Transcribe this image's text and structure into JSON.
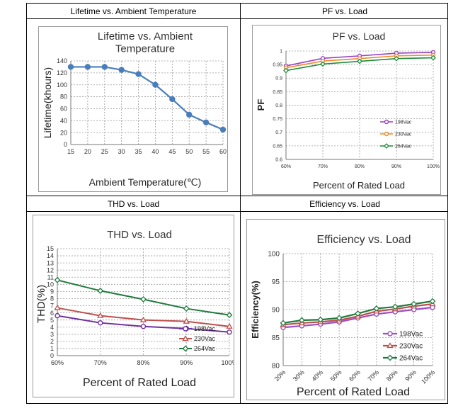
{
  "page": {
    "headers": {
      "lifetime": "Lifetime vs. Ambient Temperature",
      "pf": "PF vs. Load",
      "thd": "THD vs. Load",
      "efficiency": "Efficiency vs. Load"
    }
  },
  "chart_data": [
    {
      "id": "lifetime",
      "type": "line",
      "title": "Lifetime vs. Ambient Temperature",
      "xlabel": "Ambient Temperature(℃)",
      "ylabel": "Lifetime(khours)",
      "x": [
        15,
        20,
        25,
        30,
        35,
        40,
        45,
        50,
        55,
        60
      ],
      "xticks": [
        "15",
        "20",
        "25",
        "30",
        "35",
        "40",
        "45",
        "50",
        "55",
        "60"
      ],
      "ylim": [
        0,
        140
      ],
      "yticks": [
        "0",
        "20",
        "40",
        "60",
        "80",
        "100",
        "120",
        "140"
      ],
      "grid": true,
      "series": [
        {
          "color": "#4a7ebb",
          "marker": "dot",
          "values": [
            130,
            130,
            130,
            125,
            118,
            100,
            76,
            50,
            37,
            25
          ]
        }
      ]
    },
    {
      "id": "pf",
      "type": "line",
      "title": "PF vs. Load",
      "xlabel": "Percent of Rated Load",
      "ylabel": "PF",
      "categories": [
        "60%",
        "70%",
        "80%",
        "90%",
        "100%"
      ],
      "ylim": [
        0.6,
        1.0
      ],
      "yticks": [
        "0.6",
        "0.65",
        "0.7",
        "0.75",
        "0.8",
        "0.85",
        "0.9",
        "0.95",
        "1"
      ],
      "grid": true,
      "legend": "inside-right",
      "series": [
        {
          "name": "198Vac",
          "color": "#9b3fbf",
          "marker": "circle",
          "values": [
            0.945,
            0.973,
            0.982,
            0.992,
            0.995
          ]
        },
        {
          "name": "230Vac",
          "color": "#f08a24",
          "marker": "circle",
          "values": [
            0.938,
            0.963,
            0.972,
            0.982,
            0.985
          ]
        },
        {
          "name": "264Vac",
          "color": "#1e8a3c",
          "marker": "diamond",
          "values": [
            0.928,
            0.952,
            0.962,
            0.972,
            0.975
          ]
        }
      ]
    },
    {
      "id": "thd",
      "type": "line",
      "title": "THD vs. Load",
      "xlabel": "Percent of Rated Load",
      "ylabel": "THD(%)",
      "categories": [
        "60%",
        "70%",
        "80%",
        "90%",
        "100%"
      ],
      "ylim": [
        0,
        15
      ],
      "yticks": [
        "0",
        "1",
        "2",
        "3",
        "4",
        "5",
        "6",
        "7",
        "8",
        "9",
        "10",
        "11",
        "12",
        "13",
        "14",
        "15"
      ],
      "grid": true,
      "legend": "inside-bottom-right",
      "series": [
        {
          "name": "198Vac",
          "color": "#7030a0",
          "marker": "circle",
          "values": [
            5.6,
            4.6,
            4.1,
            3.8,
            3.3
          ]
        },
        {
          "name": "230Vac",
          "color": "#c0504d",
          "marker": "triangle",
          "values": [
            6.7,
            5.6,
            5.0,
            4.8,
            4.1
          ]
        },
        {
          "name": "264Vac",
          "color": "#1e7a3c",
          "marker": "diamond",
          "values": [
            10.6,
            9.1,
            7.9,
            6.6,
            5.7
          ]
        }
      ]
    },
    {
      "id": "efficiency",
      "type": "line",
      "title": "Efficiency vs. Load",
      "xlabel": "Percent of Rated Load",
      "ylabel": "Efficiency(%)",
      "categories": [
        "20%",
        "30%",
        "40%",
        "50%",
        "60%",
        "70%",
        "80%",
        "90%",
        "100%"
      ],
      "ylim": [
        80,
        100
      ],
      "yticks": [
        "80",
        "85",
        "90",
        "95",
        "100"
      ],
      "grid": true,
      "legend": "inside-bottom-right",
      "series": [
        {
          "name": "198Vac",
          "color": "#9b4fc7",
          "marker": "circle",
          "values": [
            86.8,
            87.1,
            87.4,
            87.8,
            88.5,
            89.2,
            89.6,
            90.0,
            90.4
          ]
        },
        {
          "name": "230Vac",
          "color": "#c0504d",
          "marker": "triangle",
          "values": [
            87.3,
            87.6,
            87.8,
            88.1,
            88.8,
            89.7,
            90.1,
            90.6,
            91.0
          ]
        },
        {
          "name": "264Vac",
          "color": "#1e7a3c",
          "marker": "diamond",
          "values": [
            87.6,
            88.1,
            88.2,
            88.5,
            89.3,
            90.2,
            90.5,
            91.0,
            91.5
          ]
        }
      ]
    }
  ]
}
